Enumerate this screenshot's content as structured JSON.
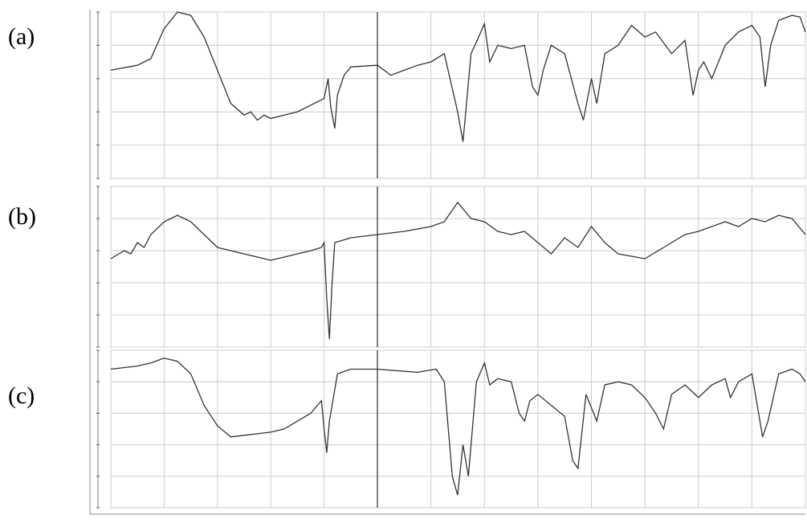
{
  "chart_data": [
    {
      "type": "line",
      "label": "(a)",
      "xlim": [
        4000,
        400
      ],
      "xbreak": 2000,
      "ylim": [
        0,
        100
      ],
      "xticks": [
        4000,
        3600,
        3200,
        2800,
        2400,
        2000,
        1800,
        1600,
        1400,
        1200,
        1000,
        800,
        600,
        400
      ],
      "yticks": [
        0,
        20,
        40,
        60,
        80,
        100
      ],
      "grid": true,
      "x": [
        4000,
        3800,
        3700,
        3600,
        3500,
        3400,
        3300,
        3200,
        3100,
        3000,
        2950,
        2900,
        2850,
        2800,
        2700,
        2600,
        2500,
        2400,
        2370,
        2350,
        2320,
        2300,
        2250,
        2200,
        2000,
        1950,
        1900,
        1850,
        1800,
        1750,
        1700,
        1680,
        1650,
        1630,
        1600,
        1580,
        1550,
        1500,
        1450,
        1420,
        1400,
        1380,
        1350,
        1300,
        1250,
        1230,
        1200,
        1180,
        1150,
        1100,
        1050,
        1000,
        960,
        900,
        850,
        820,
        800,
        780,
        750,
        700,
        650,
        600,
        570,
        550,
        530,
        500,
        450,
        420,
        400
      ],
      "series": [
        {
          "color": "#333333",
          "values": [
            65,
            68,
            72,
            90,
            100,
            98,
            85,
            65,
            45,
            38,
            40,
            35,
            38,
            36,
            38,
            40,
            44,
            48,
            60,
            43,
            30,
            50,
            62,
            67,
            68,
            62,
            65,
            68,
            70,
            75,
            40,
            22,
            75,
            82,
            93,
            70,
            80,
            78,
            80,
            55,
            50,
            65,
            80,
            75,
            45,
            35,
            60,
            45,
            75,
            80,
            92,
            85,
            88,
            75,
            83,
            50,
            65,
            70,
            60,
            80,
            88,
            92,
            85,
            55,
            80,
            95,
            98,
            97,
            88
          ]
        }
      ]
    },
    {
      "type": "line",
      "label": "(b)",
      "xlim": [
        4000,
        400
      ],
      "xbreak": 2000,
      "ylim": [
        0,
        100
      ],
      "xticks": [
        4000,
        3600,
        3200,
        2800,
        2400,
        2000,
        1800,
        1600,
        1400,
        1200,
        1000,
        800,
        600,
        400
      ],
      "yticks": [
        0,
        20,
        40,
        60,
        80,
        100
      ],
      "grid": true,
      "x": [
        4000,
        3900,
        3850,
        3800,
        3750,
        3700,
        3600,
        3500,
        3400,
        3300,
        3200,
        3100,
        3000,
        2900,
        2800,
        2700,
        2600,
        2500,
        2420,
        2400,
        2380,
        2360,
        2340,
        2320,
        2200,
        2000,
        1900,
        1800,
        1750,
        1700,
        1650,
        1600,
        1550,
        1500,
        1450,
        1400,
        1350,
        1300,
        1250,
        1200,
        1150,
        1100,
        1000,
        950,
        900,
        850,
        800,
        700,
        650,
        600,
        550,
        500,
        450,
        400
      ],
      "series": [
        {
          "color": "#333333",
          "values": [
            55,
            60,
            58,
            65,
            62,
            70,
            78,
            82,
            78,
            70,
            62,
            60,
            58,
            56,
            54,
            56,
            58,
            60,
            62,
            65,
            30,
            5,
            40,
            65,
            68,
            70,
            72,
            75,
            78,
            90,
            80,
            78,
            72,
            70,
            72,
            65,
            58,
            68,
            62,
            75,
            65,
            58,
            55,
            60,
            65,
            70,
            72,
            78,
            75,
            80,
            78,
            82,
            80,
            70
          ]
        }
      ]
    },
    {
      "type": "line",
      "label": "(c)",
      "xlim": [
        4000,
        400
      ],
      "xbreak": 2000,
      "ylim": [
        0,
        100
      ],
      "xticks": [
        4000,
        3600,
        3200,
        2800,
        2400,
        2000,
        1800,
        1600,
        1400,
        1200,
        1000,
        800,
        600,
        400
      ],
      "yticks": [
        0,
        20,
        40,
        60,
        80,
        100
      ],
      "grid": true,
      "x": [
        4000,
        3800,
        3700,
        3600,
        3500,
        3400,
        3300,
        3200,
        3100,
        3000,
        2900,
        2800,
        2700,
        2600,
        2500,
        2420,
        2400,
        2380,
        2360,
        2300,
        2200,
        2000,
        1850,
        1780,
        1750,
        1720,
        1700,
        1680,
        1660,
        1630,
        1600,
        1580,
        1550,
        1500,
        1470,
        1450,
        1430,
        1400,
        1350,
        1300,
        1270,
        1250,
        1220,
        1180,
        1150,
        1100,
        1050,
        1000,
        960,
        930,
        900,
        850,
        800,
        750,
        700,
        680,
        650,
        600,
        560,
        540,
        500,
        450,
        420,
        400
      ],
      "series": [
        {
          "color": "#333333",
          "values": [
            88,
            90,
            92,
            95,
            93,
            85,
            65,
            52,
            45,
            46,
            47,
            48,
            50,
            55,
            60,
            68,
            50,
            35,
            55,
            85,
            88,
            88,
            86,
            88,
            80,
            20,
            8,
            40,
            20,
            80,
            92,
            78,
            82,
            80,
            60,
            55,
            68,
            72,
            65,
            58,
            30,
            25,
            72,
            55,
            78,
            80,
            78,
            70,
            60,
            50,
            72,
            78,
            70,
            78,
            82,
            70,
            80,
            85,
            45,
            55,
            85,
            88,
            85,
            80
          ]
        }
      ]
    }
  ]
}
